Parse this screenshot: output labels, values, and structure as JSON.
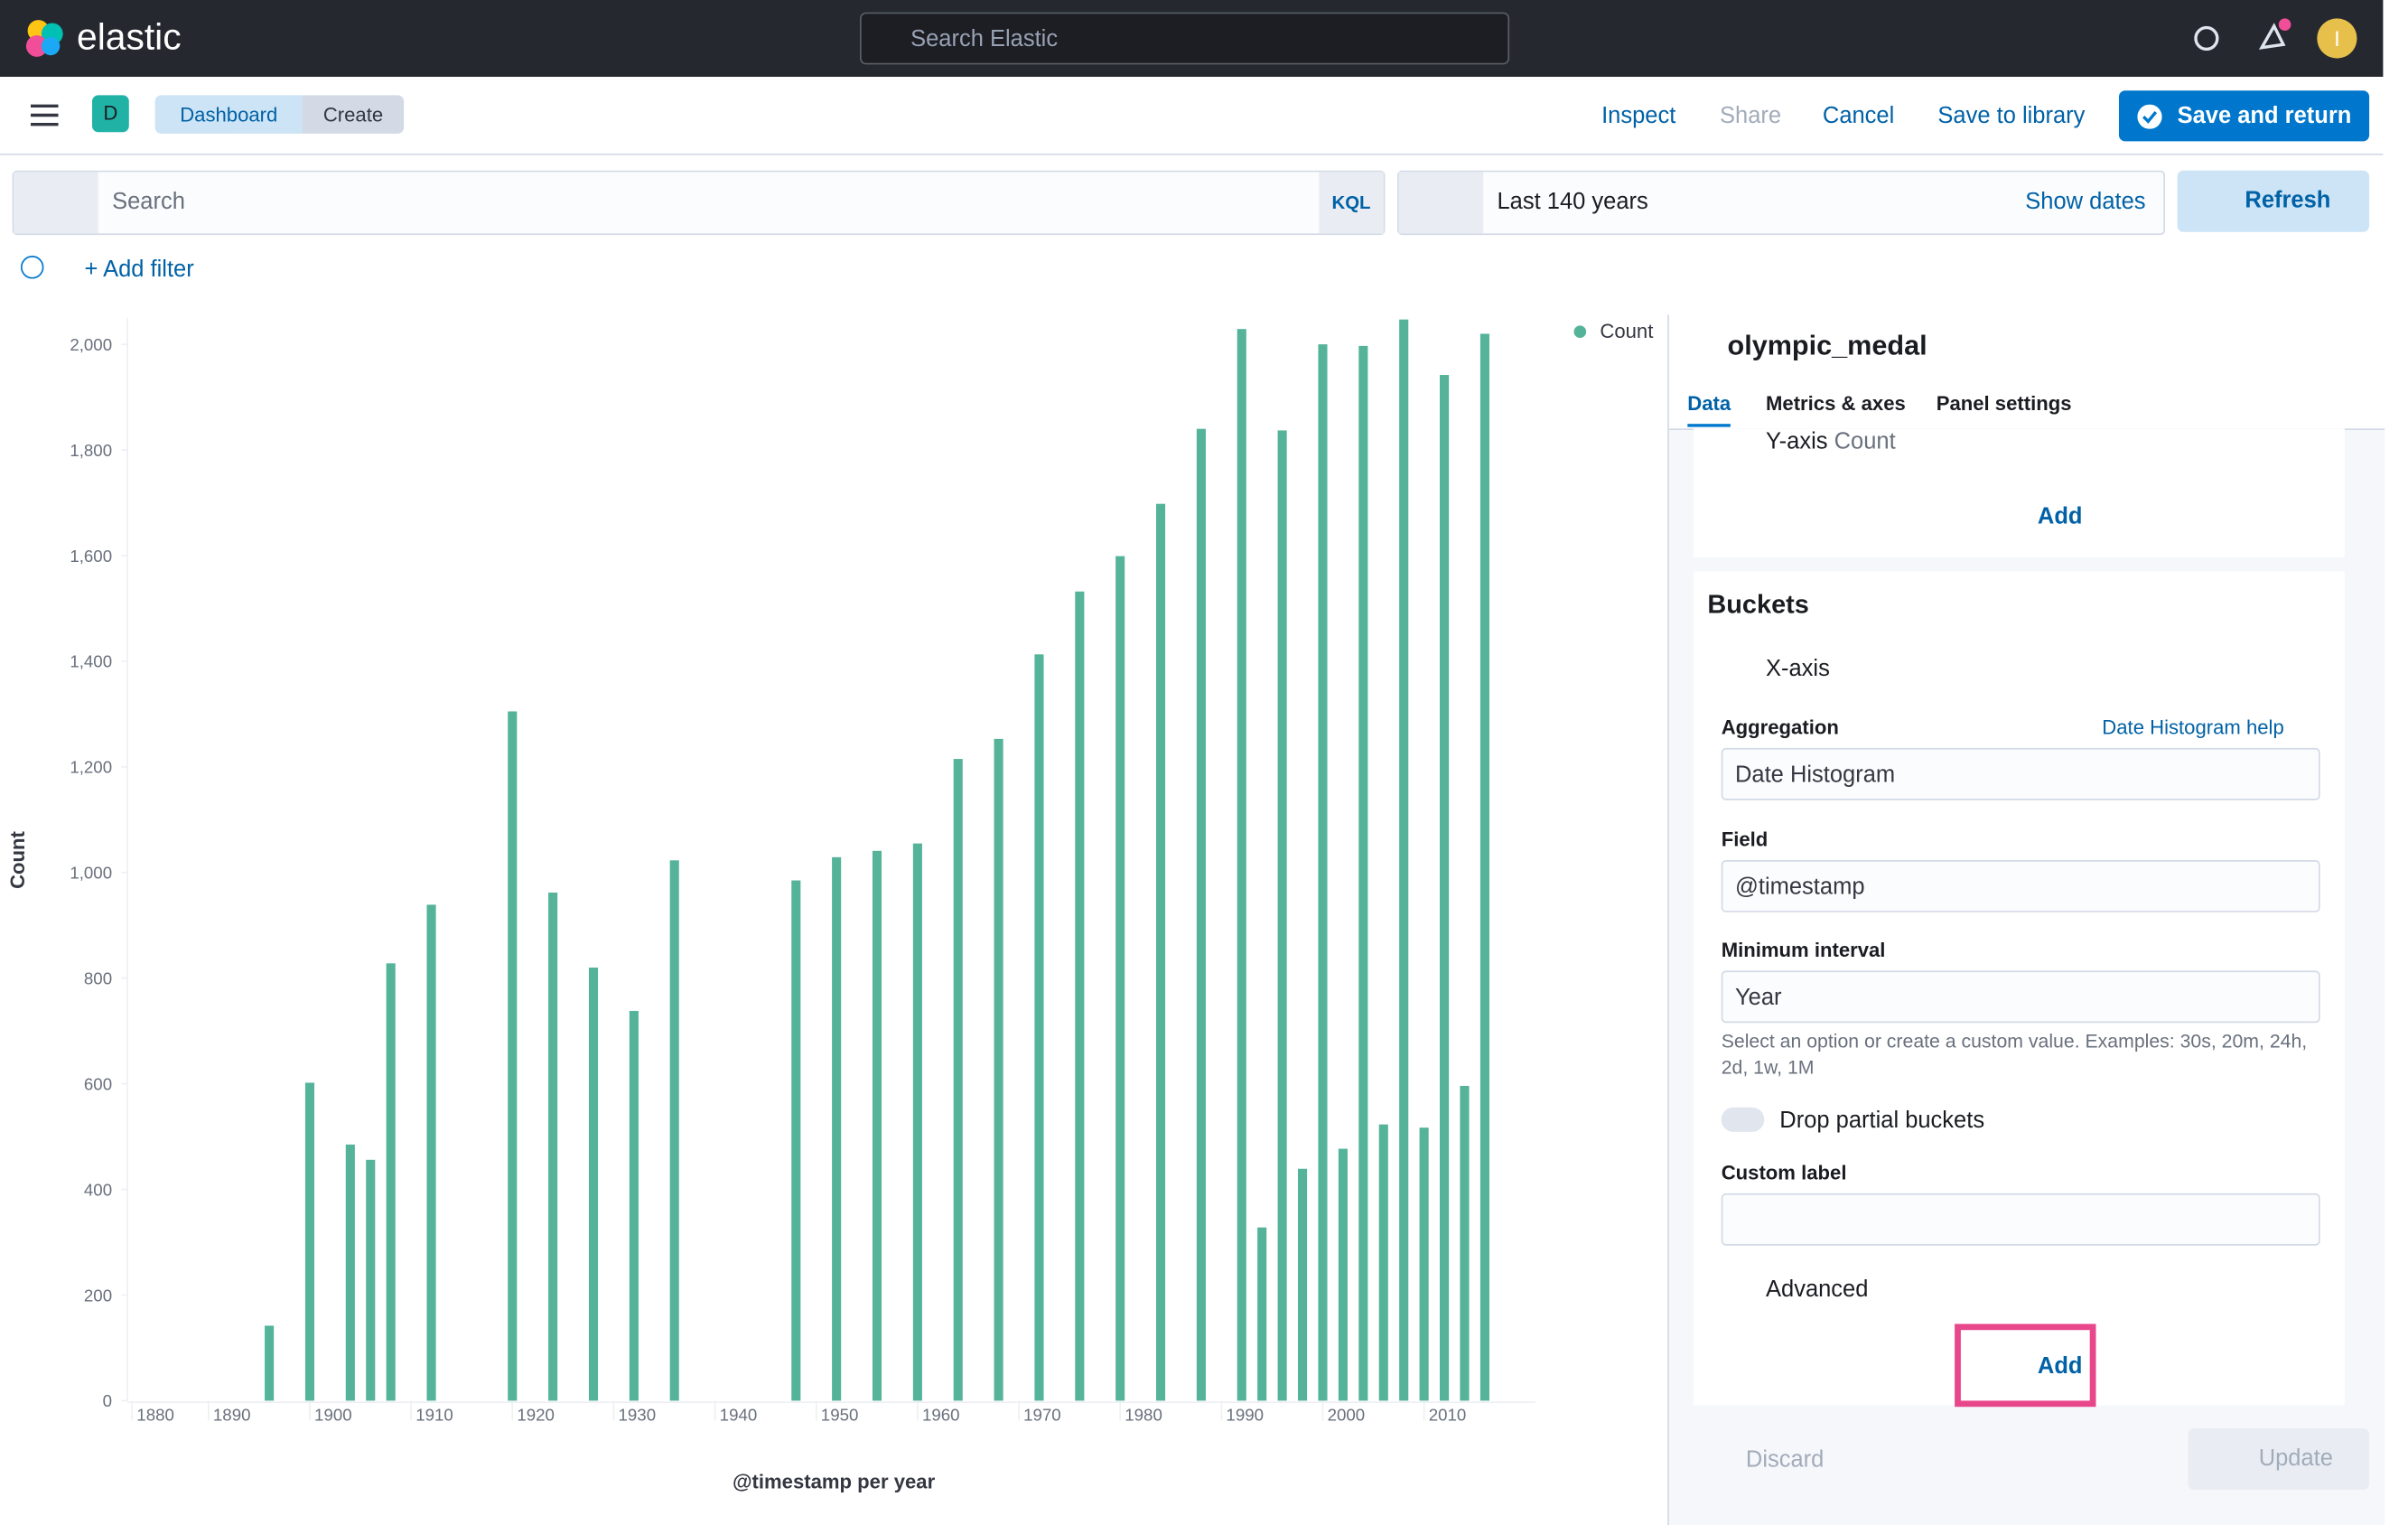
{
  "header": {
    "logo": "elastic",
    "search_placeholder": "Search Elastic",
    "avatar": "I"
  },
  "toolbar": {
    "badge": "D",
    "breadcrumbs": [
      "Dashboard",
      "Create"
    ],
    "actions": [
      "Inspect",
      "Share",
      "Cancel",
      "Save to library"
    ],
    "primary": "Save and return"
  },
  "query": {
    "search_placeholder": "Search",
    "language": "KQL",
    "time_range": "Last 140 years",
    "show_dates": "Show dates",
    "refresh": "Refresh",
    "add_filter": "+ Add filter"
  },
  "chart": {
    "type": "bar",
    "y_label": "Count",
    "x_label": "@timestamp per year",
    "x": [
      1896,
      1900,
      1904,
      1906,
      1908,
      1912,
      1920,
      1924,
      1928,
      1932,
      1936,
      1948,
      1952,
      1956,
      1960,
      1964,
      1968,
      1972,
      1976,
      1980,
      1984,
      1988,
      1992,
      1994,
      1996,
      1998,
      2000,
      2002,
      2004,
      2006,
      2008,
      2010,
      2012,
      2014,
      2016
    ],
    "series": [
      {
        "name": "Count",
        "color": "#54b399",
        "values": [
          142,
          602,
          485,
          456,
          828,
          939,
          1305,
          962,
          820,
          738,
          1023,
          985,
          1029,
          1041,
          1055,
          1215,
          1253,
          1413,
          1532,
          1599,
          1698,
          1840,
          2029,
          328,
          1837,
          439,
          2000,
          477,
          1997,
          523,
          2047,
          517,
          1942,
          596,
          2020
        ]
      }
    ],
    "xlim": [
      1882,
      2021
    ],
    "ylim": [
      0,
      2050
    ],
    "xticks": [
      1880,
      1890,
      1900,
      1910,
      1920,
      1930,
      1940,
      1950,
      1960,
      1970,
      1980,
      1990,
      2000,
      2010
    ],
    "yticks": [
      0,
      200,
      400,
      600,
      800,
      {
        "value": 1000,
        "label": "1,000"
      },
      {
        "value": 1200,
        "label": "1,200"
      },
      {
        "value": 1400,
        "label": "1,400"
      },
      {
        "value": 1600,
        "label": "1,600"
      },
      {
        "value": 1800,
        "label": "1,800"
      },
      {
        "value": 2000,
        "label": "2,000"
      }
    ],
    "legend": "top-right"
  },
  "editor": {
    "index": "olympic_medal",
    "tabs": [
      "Data",
      "Metrics & axes",
      "Panel settings"
    ],
    "metric_label": "Y-axis",
    "metric_value": "Count",
    "add_metric": "Add",
    "buckets_title": "Buckets",
    "bucket": "X-axis",
    "aggregation_label": "Aggregation",
    "aggregation_help": "Date Histogram help",
    "aggregation": "Date Histogram",
    "field_label": "Field",
    "field": "@timestamp",
    "interval_label": "Minimum interval",
    "interval": "Year",
    "interval_help": "Select an option or create a custom value. Examples: 30s, 20m, 24h, 2d, 1w, 1M",
    "drop_partial": "Drop partial buckets",
    "custom_label": "Custom label",
    "advanced": "Advanced",
    "add_bucket": "Add",
    "discard": "Discard",
    "update": "Update"
  }
}
